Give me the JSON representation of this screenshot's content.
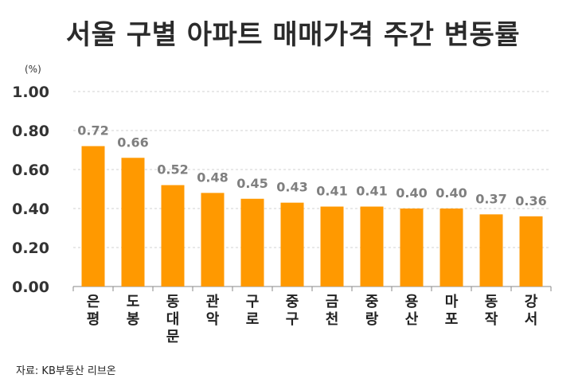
{
  "title": "서울 구별 아파트 매매가격 주간 변동률",
  "unit_label": "(%)",
  "source": "자료: KB부동산 리브온",
  "colors": {
    "bar": "#FF9900",
    "value_label": "#7f7f7f",
    "grid": "#d0d0d0",
    "axis": "#888888"
  },
  "chart_data": {
    "type": "bar",
    "title": "서울 구별 아파트 매매가격 주간 변동률",
    "ylabel": "(%)",
    "xlabel": "",
    "ylim": [
      0,
      1.0
    ],
    "yticks": [
      "0.00",
      "0.20",
      "0.40",
      "0.60",
      "0.80",
      "1.00"
    ],
    "grid": true,
    "categories": [
      "은평",
      "도봉",
      "동대문",
      "관악",
      "구로",
      "중구",
      "금천",
      "중랑",
      "용산",
      "마포",
      "동작",
      "강서"
    ],
    "values": [
      0.72,
      0.66,
      0.52,
      0.48,
      0.45,
      0.43,
      0.41,
      0.41,
      0.4,
      0.4,
      0.37,
      0.36
    ],
    "value_labels": [
      "0.72",
      "0.66",
      "0.52",
      "0.48",
      "0.45",
      "0.43",
      "0.41",
      "0.41",
      "0.40",
      "0.40",
      "0.37",
      "0.36"
    ]
  }
}
